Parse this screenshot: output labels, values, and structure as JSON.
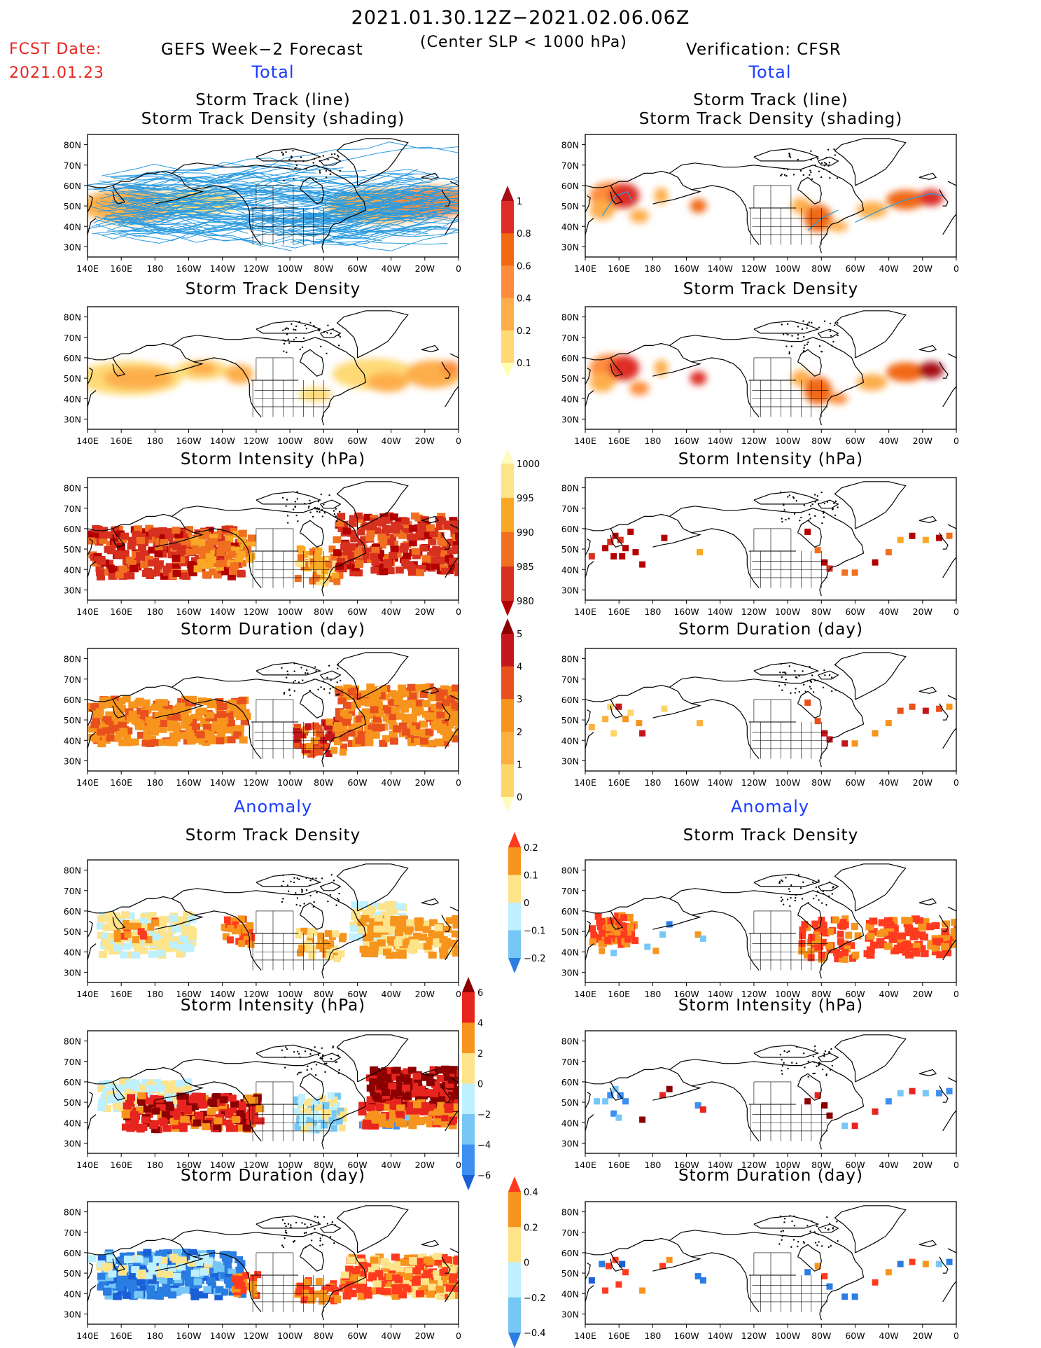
{
  "header": {
    "period": "2021.01.30.12Z−2021.02.06.06Z",
    "fcst_label": "FCST Date:",
    "fcst_date": "2021.01.23",
    "left_title": "GEFS Week−2 Forecast",
    "criterion": "(Center SLP < 1000 hPa)",
    "right_title": "Verification: CFSR",
    "total_left": "Total",
    "total_right": "Total",
    "anomaly_left": "Anomaly",
    "anomaly_right": "Anomaly"
  },
  "panels": {
    "track_line_1": "Storm Track (line)",
    "track_line_2": "Storm Track Density (shading)",
    "density": "Storm Track Density",
    "intensity": "Storm Intensity (hPa)",
    "duration": "Storm Duration (day)"
  },
  "axes": {
    "lon_labels": [
      "140E",
      "160E",
      "180",
      "160W",
      "140W",
      "120W",
      "100W",
      "80W",
      "60W",
      "40W",
      "20W",
      "0"
    ],
    "lat_labels": [
      "80N",
      "70N",
      "60N",
      "50N",
      "40N",
      "30N"
    ]
  },
  "colorbars": {
    "density_total": {
      "labels": [
        "1",
        "0.8",
        "0.6",
        "0.4",
        "0.2",
        "0.1"
      ],
      "colors": [
        "#a50f15",
        "#de2d26",
        "#f16913",
        "#fd8d3c",
        "#fdae4b",
        "#fed976",
        "#ffffb2"
      ]
    },
    "intensity_total": {
      "labels": [
        "1000",
        "995",
        "990",
        "985",
        "980"
      ],
      "colors": [
        "#fffbbf",
        "#fde38a",
        "#f9a825",
        "#f07020",
        "#d7301f",
        "#b30000"
      ]
    },
    "duration_total": {
      "labels": [
        "5",
        "4",
        "3",
        "2",
        "1",
        "0"
      ],
      "colors": [
        "#8b0000",
        "#c4161c",
        "#e8501e",
        "#f7941d",
        "#fbb040",
        "#fdd66a",
        "#fffbbf"
      ]
    },
    "density_anom": {
      "labels": [
        "0.2",
        "0.1",
        "0",
        "−0.1",
        "−0.2"
      ],
      "colors": [
        "#ff3b1f",
        "#f7941d",
        "#fde38a",
        "#bff0ff",
        "#76c7f5",
        "#2a7de1"
      ]
    },
    "intensity_anom": {
      "labels": [
        "6",
        "4",
        "2",
        "0",
        "−2",
        "−4",
        "−6"
      ],
      "colors": [
        "#8b0000",
        "#e8241e",
        "#f7941d",
        "#fde38a",
        "#bff0ff",
        "#76c7f5",
        "#3d8ff0",
        "#1a5fd6"
      ]
    },
    "duration_anom": {
      "labels": [
        "0.4",
        "0.2",
        "0",
        "−0.2",
        "−0.4"
      ],
      "colors": [
        "#ff3b1f",
        "#f7941d",
        "#fde38a",
        "#bff0ff",
        "#76c7f5",
        "#2a7de1"
      ]
    }
  }
}
